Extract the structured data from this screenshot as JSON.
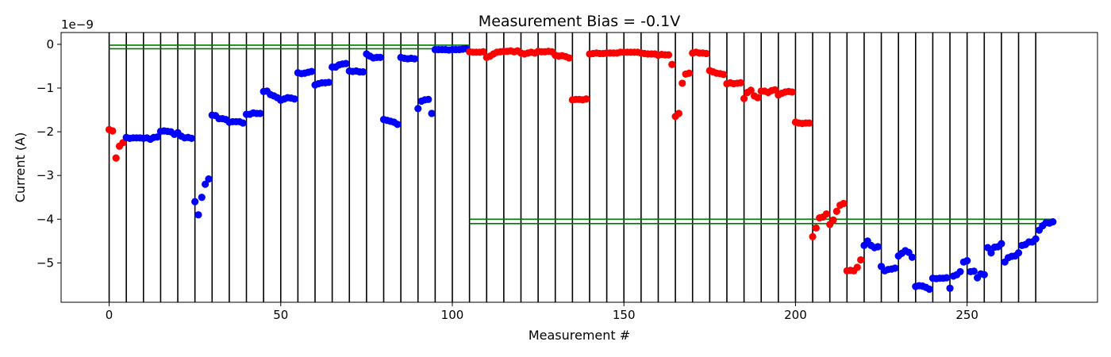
{
  "chart_data": {
    "type": "scatter",
    "title": "Measurement Bias = -0.1V",
    "xlabel": "Measurement #",
    "ylabel": "Current (A)",
    "y_scale_label": "1e−9",
    "xlim": [
      -14,
      288
    ],
    "ylim": [
      -5.9,
      0.27
    ],
    "xticks": [
      0,
      50,
      100,
      150,
      200,
      250
    ],
    "yticks": [
      0,
      -1,
      -2,
      -3,
      -4,
      -5
    ],
    "xtick_labels": [
      "0",
      "50",
      "100",
      "150",
      "200",
      "250"
    ],
    "ytick_labels": [
      "0",
      "−1",
      "−2",
      "−3",
      "−4",
      "−5"
    ],
    "vlines": [
      0,
      5,
      10,
      15,
      20,
      25,
      30,
      35,
      40,
      45,
      50,
      55,
      60,
      65,
      70,
      75,
      80,
      85,
      90,
      95,
      100,
      105,
      110,
      115,
      120,
      125,
      130,
      135,
      140,
      145,
      150,
      155,
      160,
      165,
      170,
      175,
      180,
      185,
      190,
      195,
      200,
      205,
      210,
      215,
      220,
      225,
      230,
      235,
      240,
      245,
      250,
      255,
      260,
      265,
      270
    ],
    "hlines": [
      {
        "y": -0.02,
        "x": [
          0,
          105
        ]
      },
      {
        "y": -0.1,
        "x": [
          0,
          105
        ]
      },
      {
        "y": -4.0,
        "x": [
          105,
          275
        ]
      },
      {
        "y": -4.1,
        "x": [
          105,
          275
        ]
      }
    ],
    "colors": {
      "blue": "#0000ff",
      "red": "#ff0000",
      "vline": "#000000",
      "hline": "#007700"
    },
    "grid": false,
    "series": [
      {
        "color": "red",
        "x": [
          0,
          1,
          2,
          3,
          4
        ],
        "y": [
          -1.95,
          -1.98,
          -2.6,
          -2.33,
          -2.25
        ]
      },
      {
        "color": "blue",
        "x": [
          5,
          6,
          7,
          8,
          9,
          10,
          11,
          12,
          13,
          14,
          15,
          16,
          17,
          18,
          19,
          20,
          21,
          22,
          23,
          24,
          25,
          26,
          27,
          28,
          29,
          30,
          31,
          32,
          33,
          34,
          35,
          36,
          37,
          38,
          39,
          40,
          41,
          42,
          43,
          44,
          45,
          46,
          47,
          48,
          49,
          50,
          51,
          52,
          53,
          54,
          55,
          56,
          57,
          58,
          59,
          60,
          61,
          62,
          63,
          64,
          65,
          66,
          67,
          68,
          69,
          70,
          71,
          72,
          73,
          74,
          75,
          76,
          77,
          78,
          79,
          80,
          81,
          82,
          83,
          84,
          85,
          86,
          87,
          88,
          89,
          90,
          91,
          92,
          93,
          94,
          95,
          96,
          97,
          98,
          99,
          100,
          101,
          102,
          103,
          104
        ],
        "y": [
          -2.13,
          -2.15,
          -2.14,
          -2.14,
          -2.14,
          -2.15,
          -2.14,
          -2.17,
          -2.13,
          -2.12,
          -1.99,
          -1.98,
          -1.99,
          -2.0,
          -2.06,
          -2.02,
          -2.1,
          -2.14,
          -2.13,
          -2.15,
          -3.6,
          -3.9,
          -3.5,
          -3.2,
          -3.08,
          -1.62,
          -1.63,
          -1.7,
          -1.7,
          -1.72,
          -1.78,
          -1.77,
          -1.77,
          -1.77,
          -1.8,
          -1.6,
          -1.6,
          -1.57,
          -1.58,
          -1.58,
          -1.08,
          -1.07,
          -1.15,
          -1.18,
          -1.22,
          -1.28,
          -1.25,
          -1.22,
          -1.23,
          -1.25,
          -0.65,
          -0.67,
          -0.66,
          -0.64,
          -0.62,
          -0.93,
          -0.9,
          -0.88,
          -0.88,
          -0.87,
          -0.52,
          -0.52,
          -0.47,
          -0.45,
          -0.44,
          -0.61,
          -0.62,
          -0.61,
          -0.63,
          -0.63,
          -0.22,
          -0.27,
          -0.31,
          -0.3,
          -0.3,
          -1.72,
          -1.74,
          -1.76,
          -1.78,
          -1.83,
          -0.3,
          -0.32,
          -0.33,
          -0.32,
          -0.33,
          -1.47,
          -1.3,
          -1.27,
          -1.26,
          -1.58,
          -0.12,
          -0.12,
          -0.12,
          -0.12,
          -0.13,
          -0.12,
          -0.12,
          -0.12,
          -0.11,
          -0.1
        ]
      },
      {
        "color": "red",
        "x": [
          105,
          106,
          107,
          108,
          109,
          110,
          111,
          112,
          113,
          114,
          115,
          116,
          117,
          118,
          119,
          120,
          121,
          122,
          123,
          124,
          125,
          126,
          127,
          128,
          129,
          130,
          131,
          132,
          133,
          134,
          135,
          136,
          137,
          138,
          139,
          140,
          141,
          142,
          143,
          144,
          145,
          146,
          147,
          148,
          149,
          150,
          151,
          152,
          153,
          154,
          155,
          156,
          157,
          158,
          159,
          160,
          161,
          162,
          163,
          164,
          165,
          166,
          167,
          168,
          169,
          170,
          171,
          172,
          173,
          174,
          175,
          176,
          177,
          178,
          179,
          180,
          181,
          182,
          183,
          184,
          185,
          186,
          187,
          188,
          189,
          190,
          191,
          192,
          193,
          194,
          195,
          196,
          197,
          198,
          199,
          200,
          201,
          202,
          203,
          204,
          205,
          206,
          207,
          208,
          209,
          210,
          211,
          212,
          213,
          214
        ],
        "y": [
          -0.17,
          -0.18,
          -0.18,
          -0.18,
          -0.17,
          -0.3,
          -0.27,
          -0.22,
          -0.18,
          -0.17,
          -0.16,
          -0.16,
          -0.15,
          -0.17,
          -0.15,
          -0.2,
          -0.22,
          -0.2,
          -0.18,
          -0.2,
          -0.16,
          -0.17,
          -0.17,
          -0.16,
          -0.17,
          -0.25,
          -0.27,
          -0.26,
          -0.28,
          -0.31,
          -1.27,
          -1.26,
          -1.26,
          -1.27,
          -1.25,
          -0.22,
          -0.21,
          -0.2,
          -0.21,
          -0.21,
          -0.2,
          -0.2,
          -0.2,
          -0.2,
          -0.18,
          -0.18,
          -0.18,
          -0.18,
          -0.18,
          -0.18,
          -0.2,
          -0.21,
          -0.22,
          -0.22,
          -0.22,
          -0.25,
          -0.23,
          -0.24,
          -0.24,
          -0.46,
          -1.65,
          -1.58,
          -0.89,
          -0.68,
          -0.66,
          -0.2,
          -0.18,
          -0.2,
          -0.2,
          -0.21,
          -0.6,
          -0.63,
          -0.66,
          -0.67,
          -0.69,
          -0.9,
          -0.88,
          -0.9,
          -0.89,
          -0.88,
          -1.24,
          -1.1,
          -1.05,
          -1.18,
          -1.22,
          -1.07,
          -1.07,
          -1.1,
          -1.06,
          -1.04,
          -1.16,
          -1.12,
          -1.09,
          -1.08,
          -1.09,
          -1.78,
          -1.8,
          -1.81,
          -1.8,
          -1.8,
          -4.4,
          -4.2,
          -3.97,
          -3.95,
          -3.88,
          -4.12,
          -4.02,
          -3.82,
          -3.68,
          -3.64
        ]
      },
      {
        "color": "red",
        "x": [
          215,
          216,
          217,
          218,
          219
        ],
        "y": [
          -5.18,
          -5.17,
          -5.18,
          -5.1,
          -4.93
        ]
      },
      {
        "color": "blue",
        "x": [
          220,
          221,
          222,
          223,
          224,
          225,
          226,
          227,
          228,
          229,
          230,
          231,
          232,
          233,
          234,
          235,
          236,
          237,
          238,
          239,
          240,
          241,
          242,
          243,
          244,
          245,
          246,
          247,
          248,
          249,
          250,
          251,
          252,
          253,
          254,
          255,
          256,
          257,
          258,
          259,
          260,
          261,
          262,
          263,
          264,
          265,
          266,
          267,
          268,
          269,
          270,
          271,
          272,
          273,
          274,
          275
        ],
        "y": [
          -4.6,
          -4.5,
          -4.6,
          -4.65,
          -4.63,
          -5.08,
          -5.18,
          -5.15,
          -5.14,
          -5.12,
          -4.84,
          -4.78,
          -4.72,
          -4.76,
          -4.87,
          -5.54,
          -5.52,
          -5.53,
          -5.56,
          -5.6,
          -5.35,
          -5.36,
          -5.35,
          -5.35,
          -5.34,
          -5.58,
          -5.3,
          -5.27,
          -5.2,
          -4.98,
          -4.95,
          -5.2,
          -5.19,
          -5.34,
          -5.25,
          -5.27,
          -4.65,
          -4.77,
          -4.64,
          -4.63,
          -4.56,
          -4.98,
          -4.88,
          -4.85,
          -4.84,
          -4.77,
          -4.6,
          -4.58,
          -4.52,
          -4.52,
          -4.45,
          -4.25,
          -4.15,
          -4.08,
          -4.09,
          -4.06
        ]
      }
    ]
  }
}
